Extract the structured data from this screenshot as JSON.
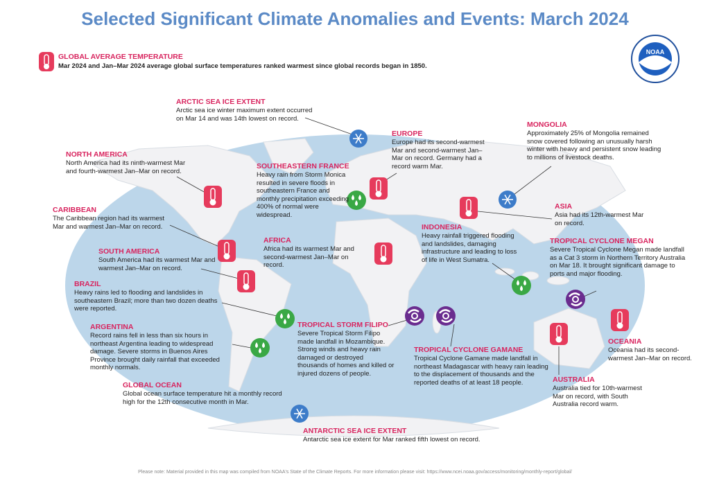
{
  "title": "Selected Significant Climate Anomalies and Events: March 2024",
  "logo": "NOAA",
  "global_temperature": {
    "heading": "GLOBAL AVERAGE TEMPERATURE",
    "text": "Mar 2024 and Jan–Mar 2024 average global surface temperatures ranked warmest since global records began in 1850."
  },
  "events": [
    {
      "heading": "ARCTIC SEA ICE EXTENT",
      "text": "Arctic sea ice winter maximum extent occurred on Mar 14 and was 14th lowest on record."
    },
    {
      "heading": "EUROPE",
      "text": "Europe had its second-warmest Mar and second-warmest Jan–Mar on record. Germany had a record warm Mar."
    },
    {
      "heading": "MONGOLIA",
      "text": "Approximately 25% of Mongolia remained snow covered following an unusually harsh winter with heavy and persistent snow leading to millions of livestock deaths."
    },
    {
      "heading": "NORTH AMERICA",
      "text": "North America had its ninth-warmest Mar and fourth-warmest Jan–Mar on record."
    },
    {
      "heading": "SOUTHEASTERN FRANCE",
      "text": "Heavy rain from Storm Monica resulted in severe floods in southeastern France and monthly precipitation exceeding 400% of normal were widespread."
    },
    {
      "heading": "CARIBBEAN",
      "text": "The Caribbean region had its warmest Mar and warmest Jan–Mar on record."
    },
    {
      "heading": "ASIA",
      "text": "Asia had its 12th-warmest Mar on record."
    },
    {
      "heading": "INDONESIA",
      "text": "Heavy rainfall triggered flooding and landslides, damaging infrastructure and leading to loss of life in West Sumatra."
    },
    {
      "heading": "AFRICA",
      "text": "Africa had its warmest Mar and second-warmest Jan–Mar on record."
    },
    {
      "heading": "TROPICAL CYCLONE MEGAN",
      "text": "Severe Tropical Cyclone Megan made landfall as a Cat 3 storm in Northern Territory Australia on Mar 18. It brought significant damage to ports and major flooding."
    },
    {
      "heading": "SOUTH AMERICA",
      "text": "South America had its warmest Mar and warmest Jan–Mar on record."
    },
    {
      "heading": "BRAZIL",
      "text": "Heavy rains led to flooding and landslides in southeastern Brazil; more than two dozen deaths were reported."
    },
    {
      "heading": "OCEANIA",
      "text": "Oceania had its second-warmest Jan–Mar on record."
    },
    {
      "heading": "ARGENTINA",
      "text": "Record rains fell in less than six hours in northeast Argentina leading to widespread damage. Severe storms in Buenos Aires Province brought daily rainfall that exceeded monthly normals."
    },
    {
      "heading": "TROPICAL STORM FILIPO",
      "text": "Severe Tropical Storm Filipo made landfall in Mozambique. Strong winds and heavy rain damaged or destroyed thousands of homes and killed or injured dozens of people."
    },
    {
      "heading": "TROPICAL CYCLONE GAMANE",
      "text": "Tropical Cyclone Gamane made landfall in northeast Madagascar with heavy rain leading to the displacement of thousands and the reported deaths of at least 18 people."
    },
    {
      "heading": "AUSTRALIA",
      "text": "Australia tied for 10th-warmest Mar on record, with South Australia record warm."
    },
    {
      "heading": "GLOBAL OCEAN",
      "text": "Global ocean surface temperature hit a monthly record high for the 12th consecutive month in Mar."
    },
    {
      "heading": "ANTARCTIC SEA ICE EXTENT",
      "text": "Antarctic sea ice extent for Mar ranked fifth lowest on record."
    }
  ],
  "footnote": "Please note: Material provided in this map was compiled from NOAA's State of the Climate Reports. For more information please visit: https://www.ncei.noaa.gov/access/monitoring/monthly-report/global/"
}
